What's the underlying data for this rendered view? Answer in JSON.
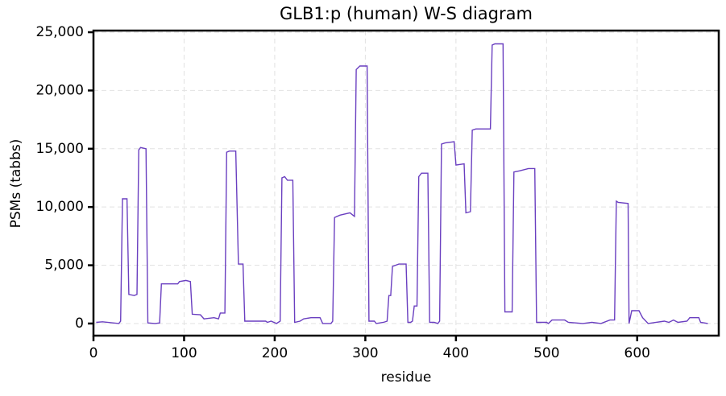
{
  "chart_data": {
    "type": "line",
    "title": "GLB1:p (human) W-S diagram",
    "xlabel": "residue",
    "ylabel": "PSMs (tabbs)",
    "color": "#6a3fc0",
    "grid": true,
    "xlim": [
      0,
      690
    ],
    "ylim": [
      -1040,
      25140
    ],
    "xticks": [
      0,
      100,
      200,
      300,
      400,
      500,
      600
    ],
    "yticks": [
      0,
      {
        "value": 5000,
        "label": "5,000"
      },
      {
        "value": 10000,
        "label": "10,000"
      },
      {
        "value": 15000,
        "label": "15,000"
      },
      {
        "value": 20000,
        "label": "20,000"
      },
      {
        "value": 25000,
        "label": "25,000"
      }
    ],
    "x": [
      3,
      10,
      28,
      30,
      32,
      37,
      39,
      45,
      48,
      50,
      52,
      58,
      60,
      68,
      73,
      75,
      93,
      95,
      102,
      107,
      109,
      118,
      122,
      133,
      138,
      140,
      145,
      147,
      150,
      157,
      160,
      165,
      167,
      190,
      192,
      196,
      202,
      206,
      208,
      211,
      214,
      220,
      222,
      228,
      232,
      240,
      250,
      253,
      262,
      264,
      266,
      272,
      283,
      288,
      290,
      294,
      302,
      304,
      310,
      312,
      320,
      324,
      326,
      328,
      330,
      337,
      345,
      347,
      350,
      352,
      354,
      357,
      359,
      362,
      369,
      371,
      376,
      380,
      382,
      384,
      388,
      398,
      400,
      409,
      411,
      416,
      418,
      422,
      438,
      440,
      443,
      452,
      454,
      462,
      464,
      470,
      480,
      487,
      489,
      500,
      502,
      506,
      520,
      524,
      540,
      550,
      560,
      570,
      575,
      577,
      579,
      590,
      591,
      594,
      602,
      606,
      612,
      630,
      635,
      640,
      645,
      655,
      658,
      668,
      670,
      678
    ],
    "values": [
      100,
      150,
      0,
      200,
      10700,
      10700,
      2500,
      2400,
      2500,
      14900,
      15100,
      15000,
      50,
      0,
      50,
      3400,
      3400,
      3600,
      3700,
      3600,
      800,
      750,
      400,
      500,
      400,
      900,
      900,
      14700,
      14800,
      14800,
      5100,
      5100,
      200,
      200,
      100,
      200,
      0,
      200,
      12500,
      12600,
      12300,
      12300,
      100,
      200,
      400,
      500,
      500,
      0,
      0,
      200,
      9100,
      9300,
      9500,
      9200,
      21800,
      22100,
      22100,
      200,
      200,
      0,
      100,
      200,
      2400,
      2400,
      4900,
      5100,
      5100,
      100,
      100,
      200,
      1500,
      1500,
      12600,
      12900,
      12900,
      100,
      100,
      0,
      200,
      15400,
      15500,
      15600,
      13600,
      13700,
      9500,
      9600,
      16600,
      16700,
      16700,
      23900,
      24000,
      24000,
      1000,
      1000,
      13000,
      13100,
      13300,
      13300,
      100,
      100,
      0,
      300,
      300,
      100,
      0,
      100,
      0,
      300,
      300,
      10500,
      10400,
      10300,
      0,
      1100,
      1100,
      500,
      0,
      200,
      100,
      300,
      100,
      200,
      500,
      500,
      100,
      0
    ]
  }
}
